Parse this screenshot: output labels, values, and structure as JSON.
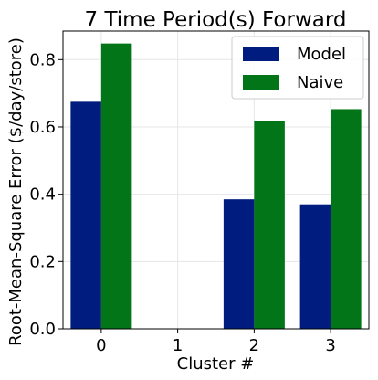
{
  "chart_data": {
    "type": "bar",
    "title": "7 Time Period(s) Forward",
    "xlabel": "Cluster #",
    "ylabel": "Root-Mean-Square Error ($/day/store)",
    "categories": [
      "0",
      "1",
      "2",
      "3"
    ],
    "series": [
      {
        "name": "Model",
        "values": [
          0.675,
          null,
          0.385,
          0.37
        ],
        "color": "#001c7f"
      },
      {
        "name": "Naive",
        "values": [
          0.848,
          null,
          0.617,
          0.653
        ],
        "color": "#017517"
      }
    ],
    "ylim": [
      0,
      0.885
    ],
    "yticks": [
      0.0,
      0.2,
      0.4,
      0.6,
      0.8
    ],
    "ytick_labels": [
      "0.0",
      "0.2",
      "0.4",
      "0.6",
      "0.8"
    ],
    "grid": true,
    "legend_position": "top-right"
  }
}
